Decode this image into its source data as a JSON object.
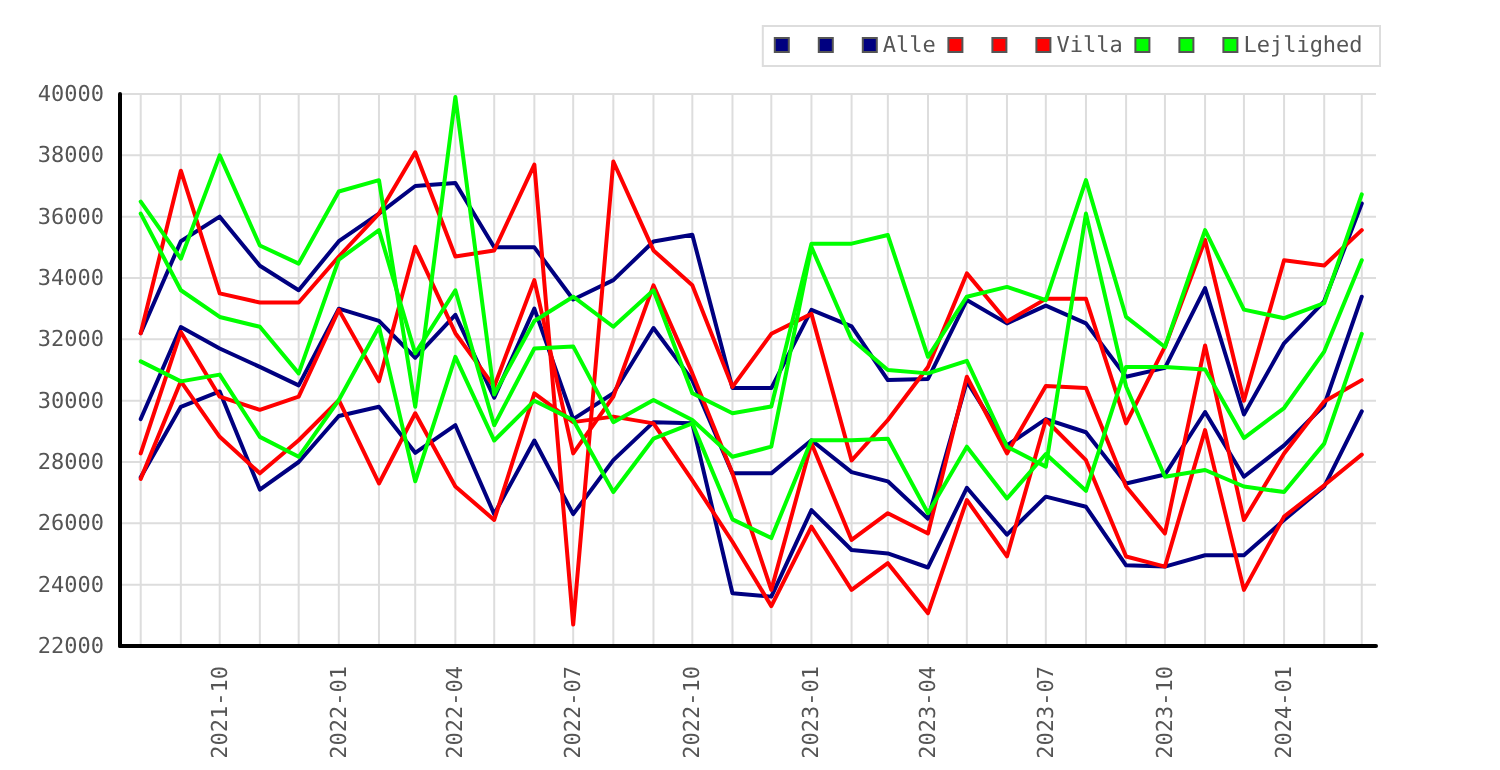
{
  "chart_data": {
    "type": "line",
    "x": [
      "2021-08",
      "2021-09",
      "2021-10",
      "2021-11",
      "2021-12",
      "2022-01",
      "2022-02",
      "2022-03",
      "2022-04",
      "2022-05",
      "2022-06",
      "2022-07",
      "2022-08",
      "2022-09",
      "2022-10",
      "2022-11",
      "2022-12",
      "2023-01",
      "2023-02",
      "2023-03",
      "2023-04",
      "2023-05",
      "2023-06",
      "2023-07",
      "2023-08",
      "2023-09",
      "2023-10",
      "2023-11",
      "2023-12",
      "2024-01",
      "2024-02",
      "2024-03"
    ],
    "series": [
      {
        "color": "#000080",
        "values": [
          32200,
          35200,
          36000,
          34400,
          33600,
          35200,
          36100,
          37000,
          37100,
          35000,
          35000,
          33300,
          33930,
          35190,
          35410,
          30410,
          30410,
          32960,
          32420,
          30670,
          30710,
          33280,
          32520,
          33100,
          32520,
          30780,
          31070,
          33670,
          29550,
          31870,
          33240,
          36430
        ]
      },
      {
        "color": "#000080",
        "values": [
          27500,
          29800,
          30300,
          27100,
          28000,
          29500,
          29800,
          28300,
          29200,
          26300,
          28700,
          26300,
          28060,
          29300,
          29260,
          23720,
          23610,
          26430,
          25130,
          25020,
          24560,
          27160,
          25630,
          26870,
          26540,
          24630,
          24590,
          24960,
          24960,
          26110,
          27200,
          29650
        ]
      },
      {
        "name": "Alle",
        "color": "#000080",
        "values": [
          29400,
          32400,
          31700,
          31100,
          30500,
          33000,
          32600,
          31400,
          32800,
          30100,
          33000,
          29400,
          30240,
          32370,
          30670,
          27630,
          27630,
          28710,
          27670,
          27370,
          26150,
          30630,
          28540,
          29400,
          28970,
          27300,
          27590,
          29630,
          27520,
          28540,
          29850,
          33390
        ]
      },
      {
        "color": "#ff0000",
        "values": [
          32200,
          37500,
          33500,
          33200,
          33200,
          34700,
          36100,
          38100,
          34700,
          34900,
          37700,
          22700,
          37800,
          34900,
          33760,
          30450,
          32180,
          32830,
          28050,
          29370,
          31100,
          34150,
          32580,
          33320,
          33320,
          29260,
          31760,
          35240,
          30000,
          34580,
          34410,
          35560
        ]
      },
      {
        "color": "#ff0000",
        "values": [
          27450,
          30630,
          28820,
          27630,
          28710,
          30020,
          27300,
          29590,
          27200,
          26110,
          30240,
          29300,
          29480,
          29260,
          27400,
          25400,
          23300,
          25890,
          23830,
          24700,
          23070,
          26760,
          24920,
          29370,
          28060,
          24920,
          24590,
          29040,
          23830,
          26220,
          27240,
          28240
        ]
      },
      {
        "name": "Villa",
        "color": "#ff0000",
        "values": [
          28280,
          32240,
          30130,
          29700,
          30130,
          32960,
          30630,
          35020,
          32200,
          30460,
          33930,
          28280,
          30130,
          33760,
          30890,
          27630,
          23830,
          28610,
          25460,
          26330,
          25670,
          30780,
          28280,
          30480,
          30410,
          27200,
          25670,
          31800,
          26110,
          28280,
          29970,
          30670
        ]
      },
      {
        "color": "#00ff00",
        "values": [
          36490,
          34630,
          38000,
          35060,
          34470,
          36820,
          37190,
          29800,
          39900,
          30200,
          32600,
          33390,
          32410,
          33600,
          30240,
          29590,
          29810,
          35120,
          35120,
          35400,
          31430,
          33390,
          33710,
          33280,
          37190,
          32730,
          31750,
          35560,
          32970,
          32690,
          33180,
          36730
        ]
      },
      {
        "color": "#00ff00",
        "values": [
          31280,
          30630,
          30850,
          28820,
          28170,
          30020,
          32410,
          27370,
          31430,
          28700,
          30000,
          29370,
          27020,
          28760,
          29260,
          26130,
          25520,
          28710,
          28710,
          28760,
          26330,
          28500,
          26810,
          28260,
          27060,
          31100,
          31100,
          31020,
          28780,
          29760,
          31600,
          34580
        ]
      },
      {
        "name": "Lejlighed",
        "color": "#00ff00",
        "values": [
          36100,
          33600,
          32730,
          32410,
          30890,
          34600,
          35560,
          31540,
          33600,
          29200,
          31700,
          31770,
          29300,
          30020,
          29370,
          28170,
          28500,
          35010,
          32000,
          31000,
          30890,
          31300,
          28500,
          27850,
          36100,
          30460,
          27520,
          27740,
          27200,
          27020,
          28600,
          32180
        ]
      }
    ],
    "xlim": [
      "2021-07-16",
      "2024-03-12"
    ],
    "xticks": [
      {
        "value": "2021-08",
        "label": null
      },
      {
        "value": "2021-09",
        "label": null
      },
      "2021-10",
      {
        "value": "2021-11",
        "label": null
      },
      {
        "value": "2021-12",
        "label": null
      },
      "2022-01",
      {
        "value": "2022-02",
        "label": null
      },
      {
        "value": "2022-03",
        "label": null
      },
      "2022-04",
      {
        "value": "2022-05",
        "label": null
      },
      {
        "value": "2022-06",
        "label": null
      },
      "2022-07",
      {
        "value": "2022-08",
        "label": null
      },
      {
        "value": "2022-09",
        "label": null
      },
      "2022-10",
      {
        "value": "2022-11",
        "label": null
      },
      {
        "value": "2022-12",
        "label": null
      },
      "2023-01",
      {
        "value": "2023-02",
        "label": null
      },
      {
        "value": "2023-03",
        "label": null
      },
      "2023-04",
      {
        "value": "2023-05",
        "label": null
      },
      {
        "value": "2023-06",
        "label": null
      },
      "2023-07",
      {
        "value": "2023-08",
        "label": null
      },
      {
        "value": "2023-09",
        "label": null
      },
      "2023-10",
      {
        "value": "2023-11",
        "label": null
      },
      {
        "value": "2023-12",
        "label": null
      },
      "2024-01",
      {
        "value": "2024-02",
        "label": null
      },
      {
        "value": "2024-03",
        "label": null
      }
    ],
    "ylim": [
      22000,
      40000
    ],
    "yticks": [
      22000,
      24000,
      26000,
      28000,
      30000,
      32000,
      34000,
      36000,
      38000,
      40000
    ],
    "grid": true,
    "legend": "top right",
    "marker": "none",
    "line_style": "solid"
  }
}
